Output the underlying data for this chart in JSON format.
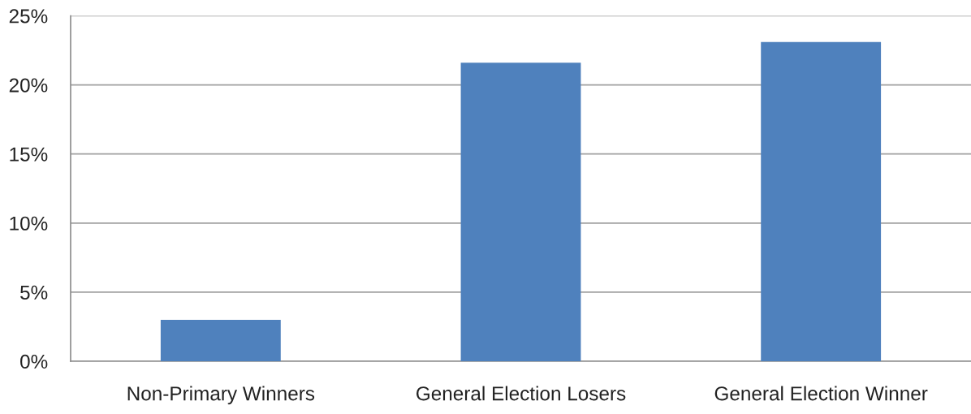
{
  "chart_data": {
    "type": "bar",
    "categories": [
      "Non-Primary Winners",
      "General Election Losers",
      "General Election Winner"
    ],
    "values": [
      3.0,
      21.6,
      23.1
    ],
    "color": "#4f81bd",
    "ylim": [
      0,
      25
    ],
    "yticks": [
      {
        "value": 0,
        "label": "0%"
      },
      {
        "value": 5,
        "label": "5%"
      },
      {
        "value": 10,
        "label": "10%"
      },
      {
        "value": 15,
        "label": "15%"
      },
      {
        "value": 20,
        "label": "20%"
      },
      {
        "value": 25,
        "label": "25%"
      }
    ],
    "grid": "y"
  }
}
